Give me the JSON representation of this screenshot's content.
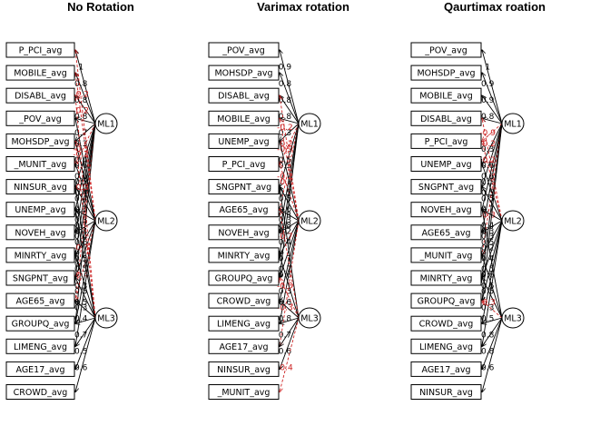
{
  "panels": [
    {
      "title": "No Rotation",
      "variables": [
        "P_PCI_avg",
        "MOBILE_avg",
        "DISABL_avg",
        "_POV_avg",
        "MOHSDP_avg",
        "_MUNIT_avg",
        "NINSUR_avg",
        "UNEMP_avg",
        "NOVEH_avg",
        "MINRTY_avg",
        "SNGPNT_avg",
        "AGE65_avg",
        "GROUPQ_avg",
        "LIMENG_avg",
        "AGE17_avg",
        "CROWD_avg"
      ],
      "factors": [
        "ML1",
        "ML2",
        "ML3"
      ],
      "loadings": [
        {
          "v": 0,
          "f": 0,
          "w": "1",
          "neg": false
        },
        {
          "v": 1,
          "f": 0,
          "w": "0.8",
          "neg": false
        },
        {
          "v": 2,
          "f": 0,
          "w": "0.8",
          "neg": false
        },
        {
          "v": 3,
          "f": 0,
          "w": "0.8",
          "neg": false
        },
        {
          "v": 4,
          "f": 0,
          "w": "0.7",
          "neg": false
        },
        {
          "v": 5,
          "f": 0,
          "w": "-0.5",
          "neg": true
        },
        {
          "v": 6,
          "f": 0,
          "w": "0.6",
          "neg": false
        },
        {
          "v": 7,
          "f": 0,
          "w": "0.5",
          "neg": false
        },
        {
          "v": 8,
          "f": 0,
          "w": "0.4",
          "neg": false
        },
        {
          "v": 9,
          "f": 0,
          "w": "0.3",
          "neg": false
        },
        {
          "v": 10,
          "f": 0,
          "w": "0.4",
          "neg": false
        },
        {
          "v": 11,
          "f": 0,
          "w": "-0.3",
          "neg": true
        },
        {
          "v": 12,
          "f": 0,
          "w": "0.2",
          "neg": false
        },
        {
          "v": 3,
          "f": 1,
          "w": "0.3",
          "neg": false
        },
        {
          "v": 4,
          "f": 1,
          "w": "0.4",
          "neg": false
        },
        {
          "v": 5,
          "f": 1,
          "w": "0.6",
          "neg": false
        },
        {
          "v": 6,
          "f": 1,
          "w": "0.4",
          "neg": false
        },
        {
          "v": 7,
          "f": 1,
          "w": "0.3",
          "neg": false
        },
        {
          "v": 8,
          "f": 1,
          "w": "0.7",
          "neg": false
        },
        {
          "v": 9,
          "f": 1,
          "w": "0.6",
          "neg": false
        },
        {
          "v": 10,
          "f": 1,
          "w": "0.5",
          "neg": false
        },
        {
          "v": 11,
          "f": 1,
          "w": "-0.4",
          "neg": true
        },
        {
          "v": 12,
          "f": 1,
          "w": "0.5",
          "neg": false
        },
        {
          "v": 13,
          "f": 1,
          "w": "0.3",
          "neg": false
        },
        {
          "v": 0,
          "f": 1,
          "w": "-0.2",
          "neg": true
        },
        {
          "v": 1,
          "f": 1,
          "w": "-0.2",
          "neg": true
        },
        {
          "v": 6,
          "f": 2,
          "w": "0.3",
          "neg": false
        },
        {
          "v": 7,
          "f": 2,
          "w": "0.4",
          "neg": false
        },
        {
          "v": 9,
          "f": 2,
          "w": "0.5",
          "neg": false
        },
        {
          "v": 10,
          "f": 2,
          "w": "0.3",
          "neg": false
        },
        {
          "v": 11,
          "f": 2,
          "w": "0.5",
          "neg": false
        },
        {
          "v": 12,
          "f": 2,
          "w": "0.4",
          "neg": false
        },
        {
          "v": 13,
          "f": 2,
          "w": "0.7",
          "neg": false
        },
        {
          "v": 14,
          "f": 2,
          "w": "0.5",
          "neg": false
        },
        {
          "v": 15,
          "f": 2,
          "w": "0.6",
          "neg": false
        },
        {
          "v": 2,
          "f": 2,
          "w": "-0.2",
          "neg": true
        },
        {
          "v": 4,
          "f": 2,
          "w": "-0.3",
          "neg": true
        }
      ]
    },
    {
      "title": "Varimax rotation",
      "variables": [
        "_POV_avg",
        "MOHSDP_avg",
        "DISABL_avg",
        "MOBILE_avg",
        "UNEMP_avg",
        "P_PCI_avg",
        "SNGPNT_avg",
        "AGE65_avg",
        "NOVEH_avg",
        "MINRTY_avg",
        "GROUPQ_avg",
        "CROWD_avg",
        "LIMENG_avg",
        "AGE17_avg",
        "NINSUR_avg",
        "_MUNIT_avg"
      ],
      "factors": [
        "ML1",
        "ML2",
        "ML3"
      ],
      "loadings": [
        {
          "v": 0,
          "f": 0,
          "w": "0.9",
          "neg": false
        },
        {
          "v": 1,
          "f": 0,
          "w": "0.8",
          "neg": false
        },
        {
          "v": 2,
          "f": 0,
          "w": "0.8",
          "neg": false
        },
        {
          "v": 3,
          "f": 0,
          "w": "0.8",
          "neg": false
        },
        {
          "v": 4,
          "f": 0,
          "w": "0.3",
          "neg": false
        },
        {
          "v": 5,
          "f": 0,
          "w": "-0.9",
          "neg": true
        },
        {
          "v": 6,
          "f": 0,
          "w": "0.5",
          "neg": false
        },
        {
          "v": 7,
          "f": 0,
          "w": "-0.2",
          "neg": true
        },
        {
          "v": 8,
          "f": 0,
          "w": "0.5",
          "neg": false
        },
        {
          "v": 9,
          "f": 0,
          "w": "0.3",
          "neg": false
        },
        {
          "v": 10,
          "f": 0,
          "w": "0.2",
          "neg": false
        },
        {
          "v": 4,
          "f": 1,
          "w": "0.5",
          "neg": false
        },
        {
          "v": 5,
          "f": 1,
          "w": "-0.2",
          "neg": true
        },
        {
          "v": 6,
          "f": 1,
          "w": "0.5",
          "neg": false
        },
        {
          "v": 7,
          "f": 1,
          "w": "0.6",
          "neg": false
        },
        {
          "v": 8,
          "f": 1,
          "w": "0.8",
          "neg": false
        },
        {
          "v": 9,
          "f": 1,
          "w": "0.4",
          "neg": false
        },
        {
          "v": 10,
          "f": 1,
          "w": "0.7",
          "neg": false
        },
        {
          "v": 11,
          "f": 1,
          "w": "0.6",
          "neg": false
        },
        {
          "v": 12,
          "f": 1,
          "w": "0.3",
          "neg": false
        },
        {
          "v": 13,
          "f": 1,
          "w": "-0.3",
          "neg": true
        },
        {
          "v": 2,
          "f": 1,
          "w": "-0.2",
          "neg": true
        },
        {
          "v": 3,
          "f": 1,
          "w": "-0.2",
          "neg": true
        },
        {
          "v": 6,
          "f": 2,
          "w": "0.3",
          "neg": false
        },
        {
          "v": 7,
          "f": 2,
          "w": "-0.7",
          "neg": true
        },
        {
          "v": 9,
          "f": 2,
          "w": "0.7",
          "neg": false
        },
        {
          "v": 10,
          "f": 2,
          "w": "-0.3",
          "neg": true
        },
        {
          "v": 11,
          "f": 2,
          "w": "0.6",
          "neg": false
        },
        {
          "v": 12,
          "f": 2,
          "w": "0.8",
          "neg": false
        },
        {
          "v": 13,
          "f": 2,
          "w": "0.7",
          "neg": false
        },
        {
          "v": 14,
          "f": 2,
          "w": "0.6",
          "neg": false
        },
        {
          "v": 15,
          "f": 2,
          "w": "-0.4",
          "neg": true
        }
      ]
    },
    {
      "title": "Qaurtimax roation",
      "variables": [
        "_POV_avg",
        "MOHSDP_avg",
        "MOBILE_avg",
        "DISABL_avg",
        "P_PCI_avg",
        "UNEMP_avg",
        "SNGPNT_avg",
        "NOVEH_avg",
        "AGE65_avg",
        "_MUNIT_avg",
        "MINRTY_avg",
        "GROUPQ_avg",
        "CROWD_avg",
        "LIMENG_avg",
        "AGE17_avg",
        "NINSUR_avg"
      ],
      "factors": [
        "ML1",
        "ML2",
        "ML3"
      ],
      "loadings": [
        {
          "v": 0,
          "f": 0,
          "w": "1",
          "neg": false
        },
        {
          "v": 1,
          "f": 0,
          "w": "0.9",
          "neg": false
        },
        {
          "v": 2,
          "f": 0,
          "w": "0.9",
          "neg": false
        },
        {
          "v": 3,
          "f": 0,
          "w": "0.8",
          "neg": false
        },
        {
          "v": 4,
          "f": 0,
          "w": "-0.9",
          "neg": true
        },
        {
          "v": 5,
          "f": 0,
          "w": "0.3",
          "neg": false
        },
        {
          "v": 6,
          "f": 0,
          "w": "0.6",
          "neg": false
        },
        {
          "v": 7,
          "f": 0,
          "w": "0.5",
          "neg": false
        },
        {
          "v": 8,
          "f": 0,
          "w": "0.5",
          "neg": false
        },
        {
          "v": 9,
          "f": 0,
          "w": "-0.3",
          "neg": true
        },
        {
          "v": 10,
          "f": 0,
          "w": "0.3",
          "neg": false
        },
        {
          "v": 11,
          "f": 0,
          "w": "0.2",
          "neg": false
        },
        {
          "v": 3,
          "f": 1,
          "w": "-0.2",
          "neg": true
        },
        {
          "v": 4,
          "f": 1,
          "w": "-0.2",
          "neg": true
        },
        {
          "v": 5,
          "f": 1,
          "w": "0.6",
          "neg": false
        },
        {
          "v": 6,
          "f": 1,
          "w": "0.5",
          "neg": false
        },
        {
          "v": 7,
          "f": 1,
          "w": "0.7",
          "neg": false
        },
        {
          "v": 8,
          "f": 1,
          "w": "0.4",
          "neg": false
        },
        {
          "v": 9,
          "f": 1,
          "w": "0.5",
          "neg": false
        },
        {
          "v": 10,
          "f": 1,
          "w": "0.4",
          "neg": false
        },
        {
          "v": 11,
          "f": 1,
          "w": "0.6",
          "neg": false
        },
        {
          "v": 12,
          "f": 1,
          "w": "0.5",
          "neg": false
        },
        {
          "v": 13,
          "f": 1,
          "w": "0.3",
          "neg": false
        },
        {
          "v": 7,
          "f": 2,
          "w": "0.3",
          "neg": false
        },
        {
          "v": 9,
          "f": 2,
          "w": "0.5",
          "neg": false
        },
        {
          "v": 10,
          "f": 2,
          "w": "0.6",
          "neg": false
        },
        {
          "v": 11,
          "f": 2,
          "w": "-0.3",
          "neg": true
        },
        {
          "v": 12,
          "f": 2,
          "w": "0.5",
          "neg": false
        },
        {
          "v": 13,
          "f": 2,
          "w": "0.8",
          "neg": false
        },
        {
          "v": 14,
          "f": 2,
          "w": "0.8",
          "neg": false
        },
        {
          "v": 15,
          "f": 2,
          "w": "0.6",
          "neg": false
        }
      ]
    }
  ],
  "colors": {
    "positive": "#000000",
    "negative": "#cc2222",
    "box": "#000000",
    "background": "#ffffff"
  }
}
